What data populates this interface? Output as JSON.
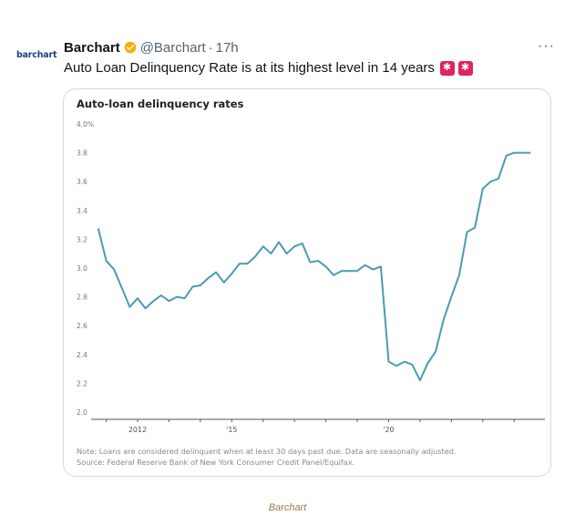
{
  "avatar": {
    "text": "barchart"
  },
  "tweet": {
    "name": "Barchart",
    "handle": "@Barchart",
    "separator": "·",
    "time": "17h",
    "more": "···",
    "text": "Auto Loan Delinquency Rate is at its highest level in 14 years"
  },
  "colors": {
    "line": "#4a9bb4",
    "axis": "#555555",
    "badge": "#f5b100",
    "siren": "#e0245e"
  },
  "notes": {
    "line1": "Note: Loans are considered delinquent when at least 30 days past due. Data are seasonally adjusted.",
    "line2": "Source: Federal Reserve Bank of New York Consumer Credit Panel/Equifax."
  },
  "caption": "Barchart",
  "chart_data": {
    "type": "line",
    "title": "Auto-loan delinquency rates",
    "xlabel": "",
    "ylabel": "",
    "ylim": [
      2.0,
      4.0
    ],
    "yticks": [
      "4.0%",
      "3.8",
      "3.6",
      "3.4",
      "3.2",
      "3.0",
      "2.8",
      "2.6",
      "2.4",
      "2.2",
      "2.0"
    ],
    "xticks": [
      {
        "label": "2012",
        "x": 2012.0
      },
      {
        "label": "'15",
        "x": 2015.0
      },
      {
        "label": "'20",
        "x": 2020.0
      }
    ],
    "xlim": [
      2010.75,
      2024.75
    ],
    "grid": false,
    "series": [
      {
        "x": [
          2010.75,
          2011.0,
          2011.25,
          2011.5,
          2011.75,
          2012.0,
          2012.25,
          2012.5,
          2012.75,
          2013.0,
          2013.25,
          2013.5,
          2013.75,
          2014.0,
          2014.25,
          2014.5,
          2014.75,
          2015.0,
          2015.25,
          2015.5,
          2015.75,
          2016.0,
          2016.25,
          2016.5,
          2016.75,
          2017.0,
          2017.25,
          2017.5,
          2017.75,
          2018.0,
          2018.25,
          2018.5,
          2018.75,
          2019.0,
          2019.25,
          2019.5,
          2019.75,
          2020.0,
          2020.25,
          2020.5,
          2020.75,
          2021.0,
          2021.25,
          2021.5,
          2021.75,
          2022.0,
          2022.25,
          2022.5,
          2022.75,
          2023.0,
          2023.25,
          2023.5,
          2023.75,
          2024.0,
          2024.25,
          2024.5
        ],
        "values": [
          3.27,
          3.05,
          2.99,
          2.86,
          2.73,
          2.79,
          2.72,
          2.77,
          2.81,
          2.77,
          2.8,
          2.79,
          2.87,
          2.88,
          2.93,
          2.97,
          2.9,
          2.96,
          3.03,
          3.03,
          3.08,
          3.15,
          3.1,
          3.18,
          3.1,
          3.15,
          3.17,
          3.04,
          3.05,
          3.01,
          2.95,
          2.98,
          2.98,
          2.98,
          3.02,
          2.99,
          3.01,
          2.35,
          2.32,
          2.35,
          2.33,
          2.22,
          2.34,
          2.42,
          2.64,
          2.8,
          2.95,
          3.25,
          3.28,
          3.55,
          3.6,
          3.62,
          3.78,
          3.8,
          3.8,
          3.8
        ]
      }
    ]
  }
}
